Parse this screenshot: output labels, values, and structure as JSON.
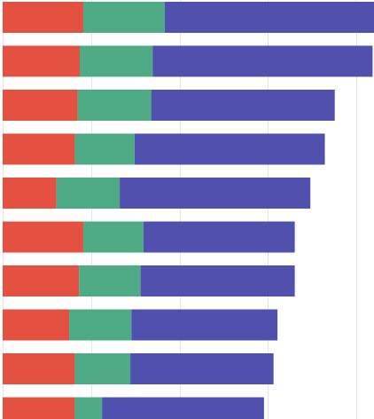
{
  "chart_data": {
    "type": "bar",
    "orientation": "horizontal",
    "stacked": true,
    "grid": true,
    "legend": "none",
    "xlim": [
      0,
      105
    ],
    "categories": [
      "",
      "",
      "",
      "",
      "",
      "",
      "",
      "",
      "",
      ""
    ],
    "series": [
      {
        "color": "#e55141",
        "values": [
          22.8,
          21.8,
          21.2,
          20.4,
          15.2,
          22.8,
          21.6,
          18.8,
          20.4,
          20.4
        ]
      },
      {
        "color": "#4fab85",
        "values": [
          23.0,
          20.6,
          20.8,
          16.9,
          17.9,
          17.0,
          17.4,
          17.6,
          15.7,
          7.7
        ]
      },
      {
        "color": "#5051ae",
        "values": [
          59.2,
          62.2,
          51.9,
          53.8,
          53.9,
          42.8,
          43.6,
          41.3,
          40.5,
          45.8
        ]
      }
    ]
  }
}
